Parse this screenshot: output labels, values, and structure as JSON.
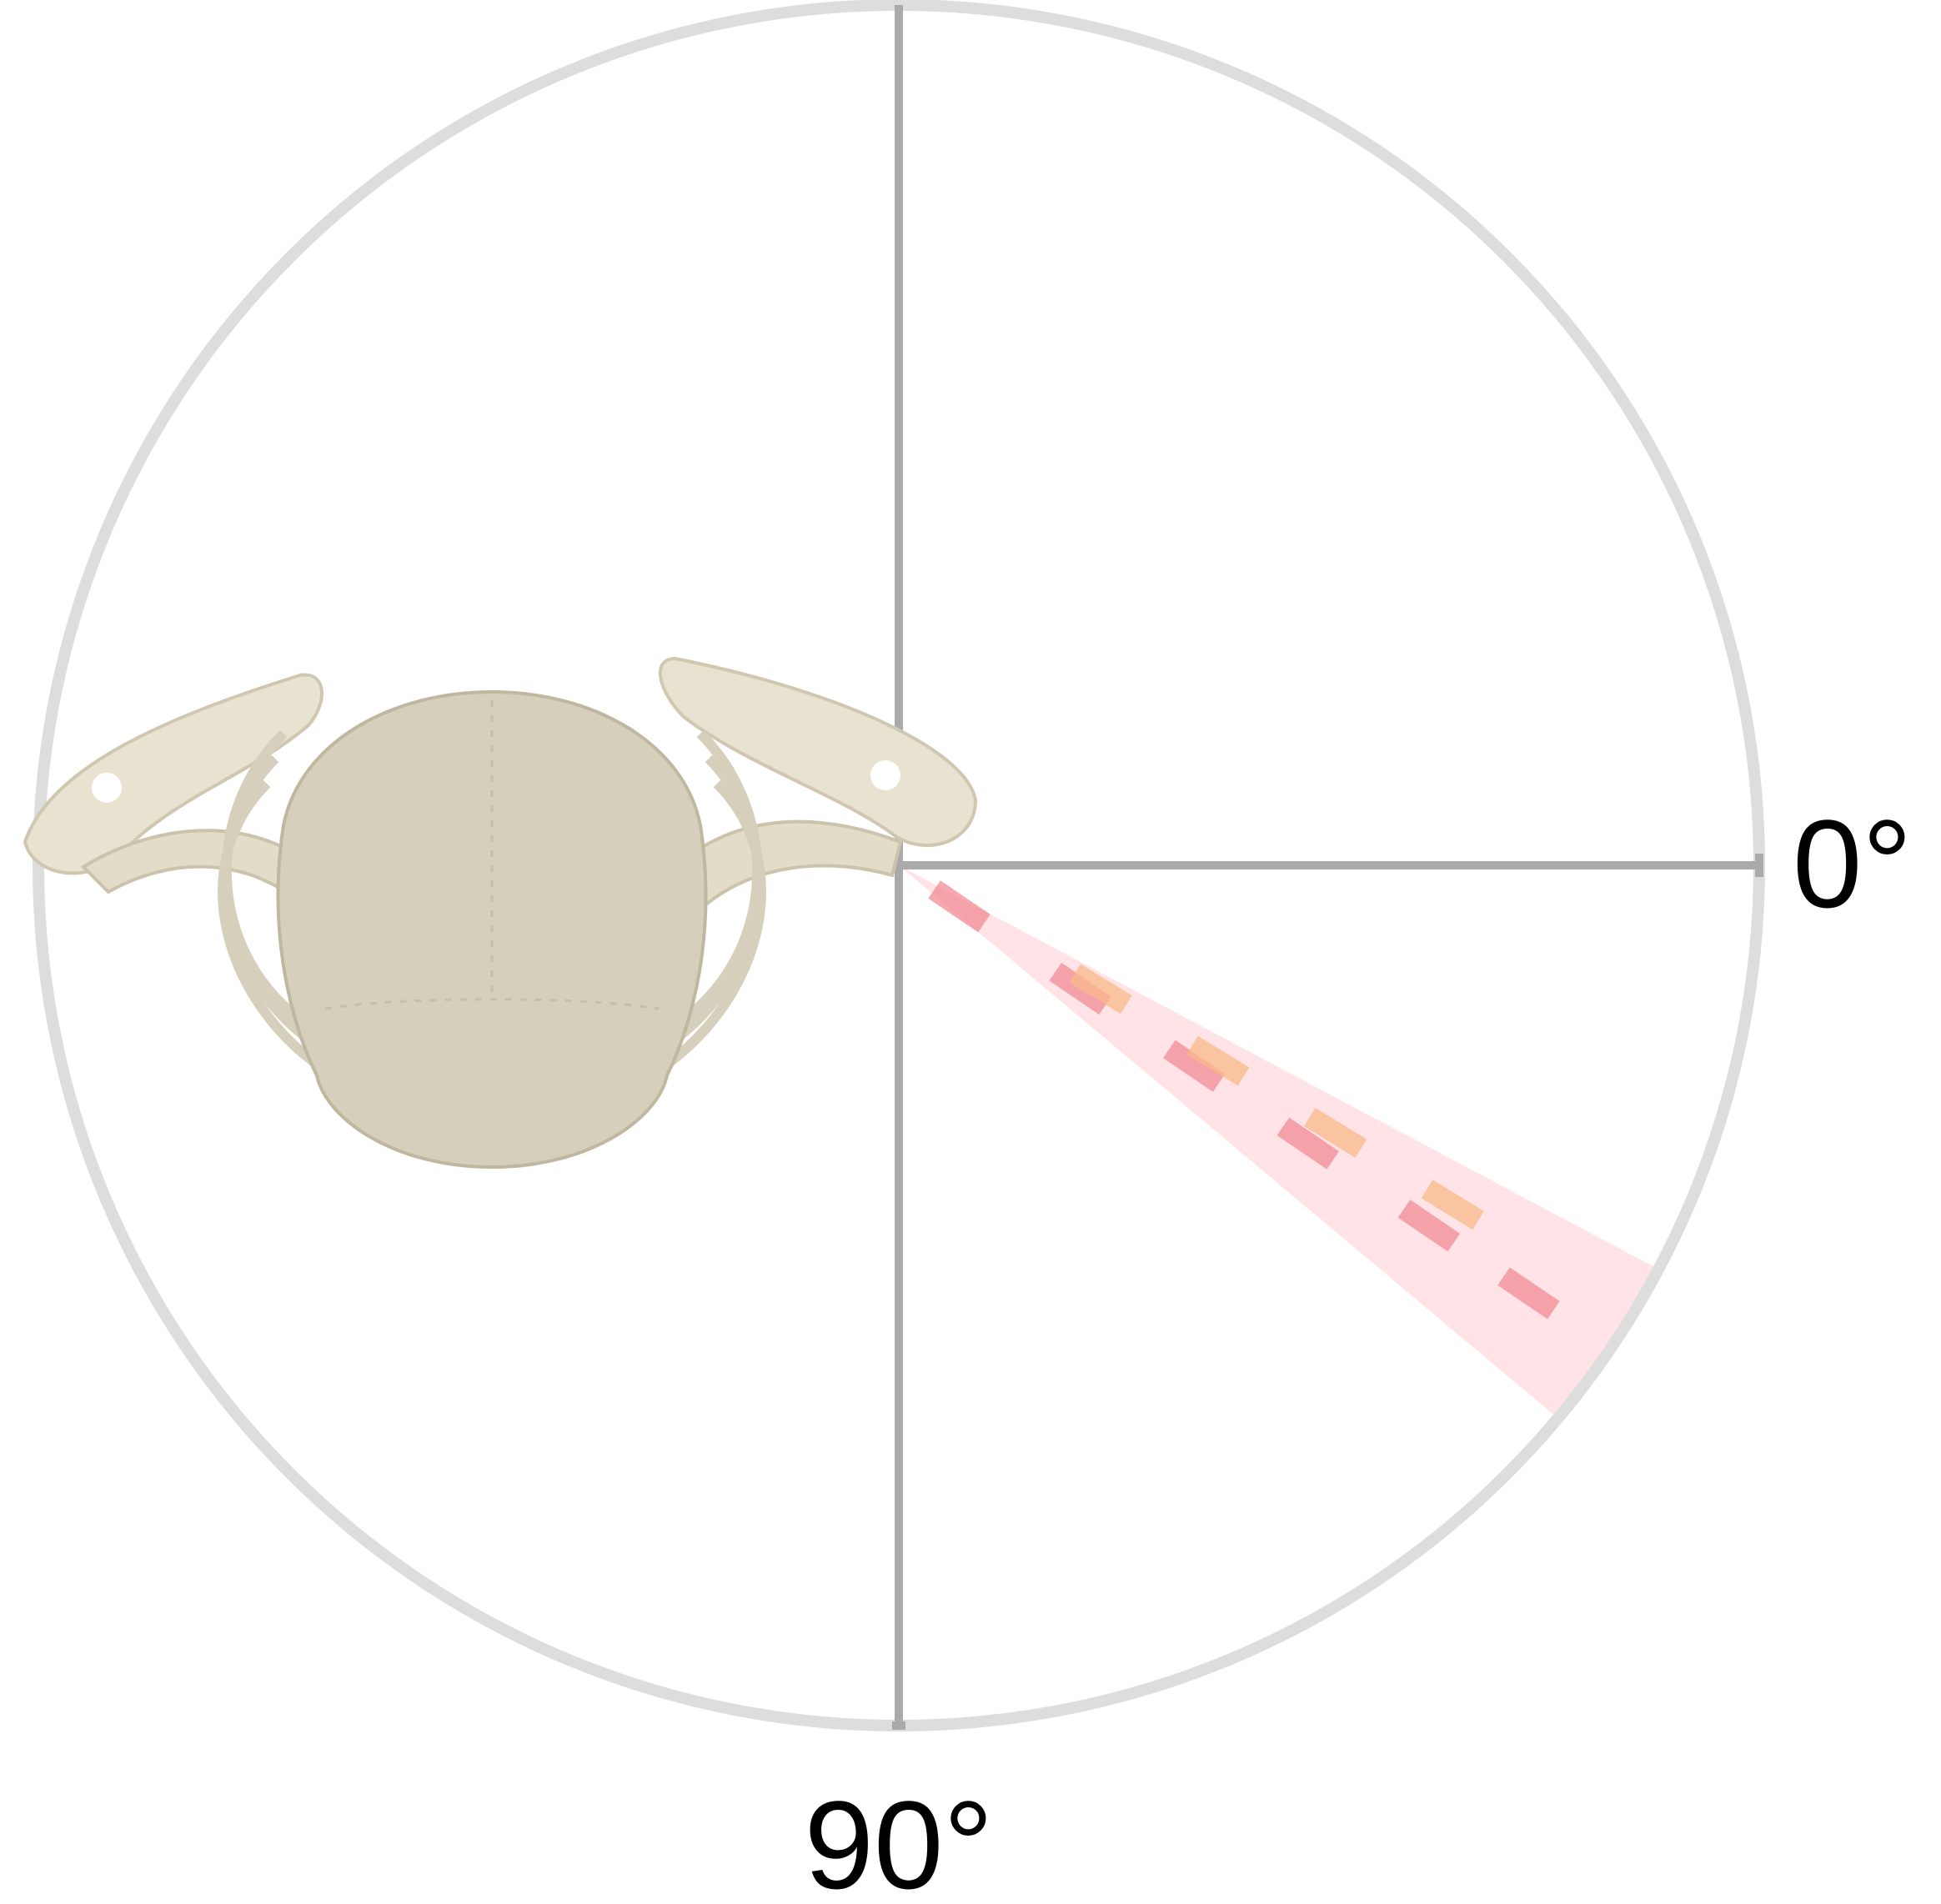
{
  "colors": {
    "ring": "#dddddd",
    "axis": "#aaaaaa",
    "sector_fill": "#ffc0c8",
    "series_pink": "#f28b96",
    "series_orange": "#f9b98a",
    "bone_light": "#e8e2d0",
    "bone_mid": "#d6cfbb",
    "bone_shadow": "#bfb7a0"
  },
  "chart_data": {
    "type": "polar-sector",
    "title": "",
    "angle_labels": [
      {
        "angle_deg": 0,
        "text": "0°"
      },
      {
        "angle_deg": 90,
        "text": "90°"
      }
    ],
    "angle_direction": "clockwise",
    "angle_zero": "right",
    "radial_range": [
      0,
      1
    ],
    "sector": {
      "start_deg": 28,
      "end_deg": 40
    },
    "series": [
      {
        "name": "pink",
        "color": "#f28b96",
        "mean_angle_deg": 34.2,
        "radii": [
          0.05,
          0.22,
          0.38,
          0.54,
          0.71,
          0.85
        ]
      },
      {
        "name": "orange",
        "color": "#f9b98a",
        "mean_angle_deg": 31.5,
        "radii": [
          0.24,
          0.4,
          0.56,
          0.72
        ]
      }
    ],
    "anatomy_icon": "upper-thorax-skeleton-icon"
  }
}
